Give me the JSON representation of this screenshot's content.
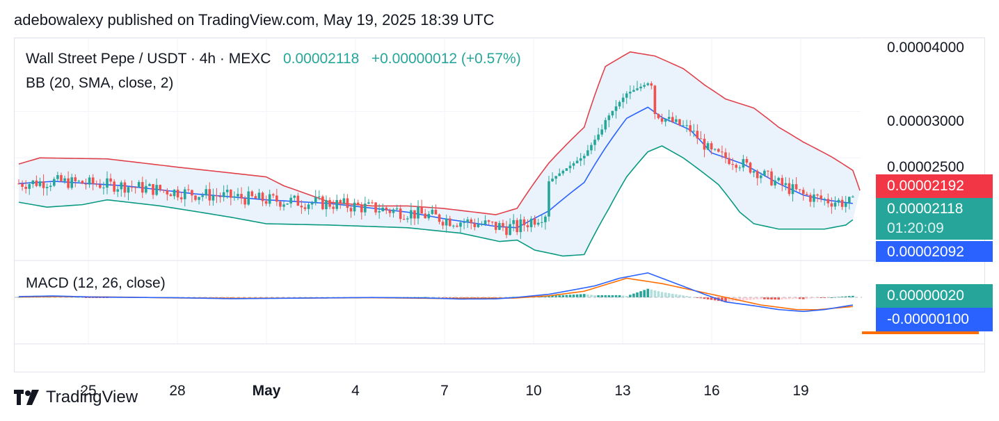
{
  "header": {
    "text": "adebowalexy published on TradingView.com, May 19, 2025 18:39 UTC"
  },
  "legend": {
    "symbol": "Wall Street Pepe / USDT · 4h · MEXC",
    "price": "0.00002118",
    "change": "+0.00000012 (+0.57%)",
    "bb": "BB (20, SMA, close, 2)",
    "macd": "MACD (12, 26, close)"
  },
  "price_axis": {
    "ticks": [
      "0.00004000",
      "0.00003000",
      "0.00002500"
    ],
    "labels": {
      "bb_upper": "0.00002192",
      "last": "0.00002118",
      "countdown": "01:20:09",
      "bb_lower": "0.00002092",
      "macd_hist": "0.00000020",
      "macd_line": "-0.00000100"
    }
  },
  "time_axis": {
    "labels": [
      {
        "text": "25",
        "bold": false
      },
      {
        "text": "28",
        "bold": false
      },
      {
        "text": "May",
        "bold": true
      },
      {
        "text": "4",
        "bold": false
      },
      {
        "text": "7",
        "bold": false
      },
      {
        "text": "10",
        "bold": false
      },
      {
        "text": "13",
        "bold": false
      },
      {
        "text": "16",
        "bold": false
      },
      {
        "text": "19",
        "bold": false
      }
    ]
  },
  "footer": {
    "brand": "TradingView"
  },
  "colors": {
    "up": "#26a69a",
    "down": "#ef5350",
    "bb_upper": "#e0414b",
    "bb_basis": "#2962ff",
    "bb_lower": "#089981",
    "bb_fill": "#eaf2fb",
    "macd": "#2962ff",
    "signal": "#ff6d00",
    "last_label": "#26a69a",
    "upper_label": "#f23645",
    "lower_label": "#2962ff"
  },
  "chart_data": {
    "type": "candlestick",
    "timeframe": "4h",
    "date_range": [
      "2025-04-23",
      "2025-05-19"
    ],
    "price_scale": "log",
    "last_price": 2.118e-05,
    "bollinger": {
      "upper": [
        [
          0,
          2.44
        ],
        [
          6,
          2.5
        ],
        [
          25,
          2.49
        ],
        [
          45,
          2.41
        ],
        [
          70,
          2.32
        ],
        [
          75,
          2.24
        ],
        [
          88,
          2.1
        ],
        [
          100,
          2.07
        ],
        [
          110,
          2.07
        ],
        [
          120,
          2.05
        ],
        [
          135,
          2.0
        ],
        [
          141,
          2.05
        ],
        [
          150,
          2.45
        ],
        [
          160,
          2.82
        ],
        [
          166,
          3.58
        ],
        [
          173,
          3.79
        ],
        [
          180,
          3.73
        ],
        [
          188,
          3.55
        ],
        [
          194,
          3.33
        ],
        [
          200,
          3.15
        ],
        [
          208,
          3.04
        ],
        [
          215,
          2.82
        ],
        [
          222,
          2.66
        ],
        [
          230,
          2.51
        ],
        [
          236,
          2.38
        ],
        [
          238,
          2.2
        ]
      ],
      "basis": [
        [
          0,
          2.26
        ],
        [
          10,
          2.28
        ],
        [
          30,
          2.24
        ],
        [
          50,
          2.17
        ],
        [
          70,
          2.12
        ],
        [
          88,
          2.09
        ],
        [
          110,
          2.02
        ],
        [
          120,
          1.97
        ],
        [
          135,
          1.91
        ],
        [
          141,
          1.9
        ],
        [
          150,
          2.03
        ],
        [
          160,
          2.27
        ],
        [
          166,
          2.6
        ],
        [
          172,
          2.92
        ],
        [
          178,
          3.05
        ],
        [
          182,
          2.93
        ],
        [
          190,
          2.79
        ],
        [
          196,
          2.55
        ],
        [
          205,
          2.44
        ],
        [
          215,
          2.26
        ],
        [
          222,
          2.16
        ],
        [
          228,
          2.12
        ],
        [
          236,
          2.09
        ]
      ],
      "lower": [
        [
          0,
          2.1
        ],
        [
          8,
          2.06
        ],
        [
          18,
          2.08
        ],
        [
          25,
          2.12
        ],
        [
          40,
          2.07
        ],
        [
          60,
          1.98
        ],
        [
          70,
          1.93
        ],
        [
          88,
          1.92
        ],
        [
          110,
          1.9
        ],
        [
          125,
          1.86
        ],
        [
          136,
          1.8
        ],
        [
          141,
          1.81
        ],
        [
          146,
          1.74
        ],
        [
          154,
          1.7
        ],
        [
          160,
          1.71
        ],
        [
          167,
          2.05
        ],
        [
          172,
          2.32
        ],
        [
          178,
          2.56
        ],
        [
          182,
          2.62
        ],
        [
          188,
          2.5
        ],
        [
          198,
          2.25
        ],
        [
          204,
          2.02
        ],
        [
          208,
          1.93
        ],
        [
          215,
          1.89
        ],
        [
          228,
          1.89
        ],
        [
          234,
          1.92
        ],
        [
          236,
          1.96
        ]
      ]
    },
    "macd": {
      "macd_line": [
        [
          0,
          0.1
        ],
        [
          10,
          0.18
        ],
        [
          20,
          0.05
        ],
        [
          30,
          0.0
        ],
        [
          45,
          -0.05
        ],
        [
          60,
          -0.18
        ],
        [
          80,
          -0.1
        ],
        [
          100,
          -0.02
        ],
        [
          115,
          -0.08
        ],
        [
          125,
          -0.22
        ],
        [
          135,
          -0.2
        ],
        [
          141,
          0.0
        ],
        [
          150,
          0.4
        ],
        [
          157,
          0.98
        ],
        [
          163,
          1.5
        ],
        [
          170,
          2.5
        ],
        [
          178,
          3.2
        ],
        [
          186,
          1.8
        ],
        [
          194,
          0.4
        ],
        [
          200,
          -0.6
        ],
        [
          208,
          -1.1
        ],
        [
          215,
          -1.6
        ],
        [
          222,
          -1.85
        ],
        [
          228,
          -1.6
        ],
        [
          236,
          -1.0
        ]
      ],
      "signal_line": [
        [
          0,
          0.05
        ],
        [
          10,
          0.1
        ],
        [
          25,
          0.05
        ],
        [
          45,
          -0.08
        ],
        [
          60,
          -0.12
        ],
        [
          80,
          -0.1
        ],
        [
          100,
          -0.05
        ],
        [
          120,
          -0.15
        ],
        [
          140,
          -0.1
        ],
        [
          150,
          0.2
        ],
        [
          160,
          0.8
        ],
        [
          172,
          2.5
        ],
        [
          182,
          1.8
        ],
        [
          190,
          1.0
        ],
        [
          200,
          0.0
        ],
        [
          210,
          -1.0
        ],
        [
          220,
          -1.6
        ],
        [
          226,
          -1.62
        ],
        [
          236,
          -1.2
        ]
      ],
      "histogram_last": 0.2
    }
  }
}
